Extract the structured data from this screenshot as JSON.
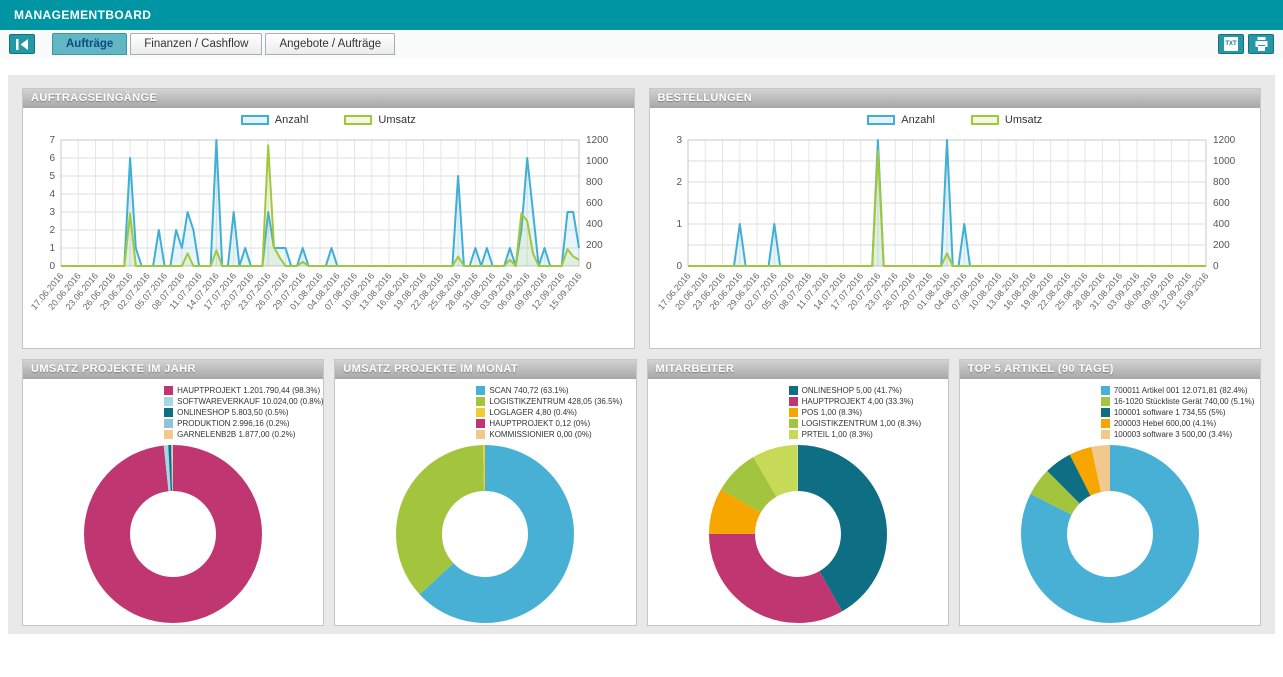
{
  "app": {
    "title": "MANAGEMENTBOARD"
  },
  "tabs": [
    {
      "label": "Aufträge",
      "active": true
    },
    {
      "label": "Finanzen / Cashflow",
      "active": false
    },
    {
      "label": "Angebote / Aufträge",
      "active": false
    }
  ],
  "toolbar": {
    "export_label": "TXT"
  },
  "colors": {
    "header_teal": "#0095a3",
    "active_tab": "#63b7c5",
    "anzahl_blue": "#3fafd7",
    "umsatz_green": "#a2c73b",
    "magenta": "#bf3671",
    "orange": "#f7a600",
    "dark_teal": "#0e6e84",
    "tan": "#f2c98c"
  },
  "charts": {
    "orders_in": {
      "title": "AUFTRAGSEINGÄNGE",
      "y_left": {
        "min": 0,
        "max": 7,
        "step": 1
      },
      "y_right": {
        "min": 0,
        "max": 1200,
        "step": 200
      },
      "x_labels": [
        "17.06.2016",
        "20.06.2016",
        "23.06.2016",
        "26.06.2016",
        "29.06.2016",
        "02.07.2016",
        "05.07.2016",
        "08.07.2016",
        "11.07.2016",
        "14.07.2016",
        "17.07.2016",
        "20.07.2016",
        "23.07.2016",
        "26.07.2016",
        "29.07.2016",
        "01.08.2016",
        "04.08.2016",
        "07.08.2016",
        "10.08.2016",
        "13.08.2016",
        "16.08.2016",
        "19.08.2016",
        "22.08.2016",
        "25.08.2016",
        "28.08.2016",
        "31.08.2016",
        "03.09.2016",
        "06.09.2016",
        "09.09.2016",
        "12.09.2016",
        "15.09.2016"
      ],
      "series": [
        {
          "name": "Anzahl",
          "axis": "left",
          "color": "#3fafd7",
          "values": [
            0,
            0,
            0,
            0,
            0,
            0,
            0,
            0,
            0,
            0,
            0,
            0,
            6,
            1,
            0,
            0,
            0,
            2,
            0,
            0,
            2,
            1,
            3,
            2,
            0,
            0,
            0,
            7,
            0,
            0,
            3,
            0,
            1,
            0,
            0,
            0,
            3,
            1,
            1,
            1,
            0,
            0,
            1,
            0,
            0,
            0,
            0,
            1,
            0,
            0,
            0,
            0,
            0,
            0,
            0,
            0,
            0,
            0,
            0,
            0,
            0,
            0,
            0,
            0,
            0,
            0,
            0,
            0,
            0,
            5,
            0,
            0,
            1,
            0,
            1,
            0,
            0,
            0,
            1,
            0,
            2,
            6,
            3,
            0,
            1,
            0,
            0,
            0,
            3,
            3,
            1
          ]
        },
        {
          "name": "Umsatz",
          "axis": "right",
          "color": "#a2c73b",
          "values": [
            0,
            0,
            0,
            0,
            0,
            0,
            0,
            0,
            0,
            0,
            0,
            0,
            500,
            0,
            0,
            0,
            0,
            0,
            0,
            0,
            0,
            0,
            120,
            0,
            0,
            0,
            0,
            150,
            0,
            0,
            0,
            0,
            0,
            0,
            0,
            0,
            1150,
            180,
            80,
            0,
            0,
            0,
            40,
            0,
            0,
            0,
            0,
            0,
            0,
            0,
            0,
            0,
            0,
            0,
            0,
            0,
            0,
            0,
            0,
            0,
            0,
            0,
            0,
            0,
            0,
            0,
            0,
            0,
            0,
            90,
            0,
            0,
            0,
            0,
            0,
            0,
            0,
            0,
            60,
            0,
            500,
            430,
            120,
            0,
            0,
            0,
            0,
            0,
            160,
            90,
            60
          ]
        }
      ]
    },
    "purchases": {
      "title": "BESTELLUNGEN",
      "y_left": {
        "min": 0,
        "max": 3,
        "step": 1
      },
      "y_right": {
        "min": 0,
        "max": 1200,
        "step": 200
      },
      "x_labels": [
        "17.06.2016",
        "20.06.2016",
        "23.06.2016",
        "26.06.2016",
        "29.06.2016",
        "02.07.2016",
        "05.07.2016",
        "08.07.2016",
        "11.07.2016",
        "14.07.2016",
        "17.07.2016",
        "20.07.2016",
        "23.07.2016",
        "26.07.2016",
        "29.07.2016",
        "01.08.2016",
        "04.08.2016",
        "07.08.2016",
        "10.08.2016",
        "13.08.2016",
        "16.08.2016",
        "19.08.2016",
        "22.08.2016",
        "25.08.2016",
        "28.08.2016",
        "31.08.2016",
        "03.09.2016",
        "06.09.2016",
        "09.09.2016",
        "12.09.2016",
        "15.09.2016"
      ],
      "series": [
        {
          "name": "Anzahl",
          "axis": "left",
          "color": "#3fafd7",
          "values": [
            0,
            0,
            0,
            0,
            0,
            0,
            0,
            0,
            0,
            1,
            0,
            0,
            0,
            0,
            0,
            1,
            0,
            0,
            0,
            0,
            0,
            0,
            0,
            0,
            0,
            0,
            0,
            0,
            0,
            0,
            0,
            0,
            0,
            3,
            0,
            0,
            0,
            0,
            0,
            0,
            0,
            0,
            0,
            0,
            0,
            3,
            0,
            0,
            1,
            0,
            0,
            0,
            0,
            0,
            0,
            0,
            0,
            0,
            0,
            0,
            0,
            0,
            0,
            0,
            0,
            0,
            0,
            0,
            0,
            0,
            0,
            0,
            0,
            0,
            0,
            0,
            0,
            0,
            0,
            0,
            0,
            0,
            0,
            0,
            0,
            0,
            0,
            0,
            0,
            0,
            0
          ]
        },
        {
          "name": "Umsatz",
          "axis": "right",
          "color": "#a2c73b",
          "values": [
            0,
            0,
            0,
            0,
            0,
            0,
            0,
            0,
            0,
            0,
            0,
            0,
            0,
            0,
            0,
            0,
            0,
            0,
            0,
            0,
            0,
            0,
            0,
            0,
            0,
            0,
            0,
            0,
            0,
            0,
            0,
            0,
            0,
            1100,
            0,
            0,
            0,
            0,
            0,
            0,
            0,
            0,
            0,
            0,
            0,
            120,
            0,
            0,
            0,
            0,
            0,
            0,
            0,
            0,
            0,
            0,
            0,
            0,
            0,
            0,
            0,
            0,
            0,
            0,
            0,
            0,
            0,
            0,
            0,
            0,
            0,
            0,
            0,
            0,
            0,
            0,
            0,
            0,
            0,
            0,
            0,
            0,
            0,
            0,
            0,
            0,
            0,
            0,
            0,
            0,
            0
          ]
        }
      ]
    },
    "donut_year": {
      "title": "UMSATZ PROJEKTE IM JAHR",
      "items": [
        {
          "label": "HAUPTPROJEKT",
          "value": "1.201.790,44",
          "pct": 98.3,
          "pct_label": "98.3%",
          "color": "#bf3671"
        },
        {
          "label": "SOFTWAREVERKAUF",
          "value": "10.024,00",
          "pct": 0.8,
          "pct_label": "0.8%",
          "color": "#a8d5e5"
        },
        {
          "label": "ONLINESHOP",
          "value": "5.803,50",
          "pct": 0.5,
          "pct_label": "0.5%",
          "color": "#0e6e84"
        },
        {
          "label": "PRODUKTION",
          "value": "2.996,16",
          "pct": 0.2,
          "pct_label": "0.2%",
          "color": "#8fc3d9"
        },
        {
          "label": "GARNELENB2B",
          "value": "1.877,00",
          "pct": 0.2,
          "pct_label": "0.2%",
          "color": "#f2c98c"
        }
      ]
    },
    "donut_month": {
      "title": "UMSATZ PROJEKTE IM MONAT",
      "items": [
        {
          "label": "SCAN",
          "value": "740,72",
          "pct": 63.1,
          "pct_label": "63.1%",
          "color": "#49b0d5"
        },
        {
          "label": "LOGISTIKZENTRUM",
          "value": "428,05",
          "pct": 36.5,
          "pct_label": "36.5%",
          "color": "#a3c53d"
        },
        {
          "label": "LOGLAGER",
          "value": "4,80",
          "pct": 0.4,
          "pct_label": "0.4%",
          "color": "#eecf2f"
        },
        {
          "label": "HAUPTPROJEKT",
          "value": "0,12",
          "pct": 0,
          "pct_label": "0%",
          "color": "#bf3671"
        },
        {
          "label": "KOMMISSIONIER",
          "value": "0,00",
          "pct": 0,
          "pct_label": "0%",
          "color": "#f2c98c"
        }
      ]
    },
    "donut_staff": {
      "title": "MITARBEITER",
      "items": [
        {
          "label": "ONLINESHOP",
          "value": "5,00",
          "pct": 41.7,
          "pct_label": "41.7%",
          "color": "#0e6e84"
        },
        {
          "label": "HAUPTPROJEKT",
          "value": "4,00",
          "pct": 33.3,
          "pct_label": "33.3%",
          "color": "#bf3671"
        },
        {
          "label": "POS",
          "value": "1,00",
          "pct": 8.3,
          "pct_label": "8.3%",
          "color": "#f7a600"
        },
        {
          "label": "LOGISTIKZENTRUM",
          "value": "1,00",
          "pct": 8.3,
          "pct_label": "8.3%",
          "color": "#a3c53d"
        },
        {
          "label": "PRTEIL",
          "value": "1,00",
          "pct": 8.3,
          "pct_label": "8.3%",
          "color": "#c6da58"
        }
      ]
    },
    "donut_top5": {
      "title": "TOP 5 ARTIKEL (90 TAGE)",
      "items": [
        {
          "label": "700011 Artikel 001",
          "value": "12.071,81",
          "pct": 82.4,
          "pct_label": "82.4%",
          "color": "#49b0d5"
        },
        {
          "label": "16-1020 Stückliste Gerät",
          "value": "740,00",
          "pct": 5.1,
          "pct_label": "5.1%",
          "color": "#a3c53d"
        },
        {
          "label": "100001 software 1",
          "value": "734,55",
          "pct": 5,
          "pct_label": "5%",
          "color": "#0e6e84"
        },
        {
          "label": "200003 Hebel",
          "value": "600,00",
          "pct": 4.1,
          "pct_label": "4.1%",
          "color": "#f7a600"
        },
        {
          "label": "100003 software 3",
          "value": "500,00",
          "pct": 3.4,
          "pct_label": "3.4%",
          "color": "#f2c98c"
        }
      ]
    }
  }
}
